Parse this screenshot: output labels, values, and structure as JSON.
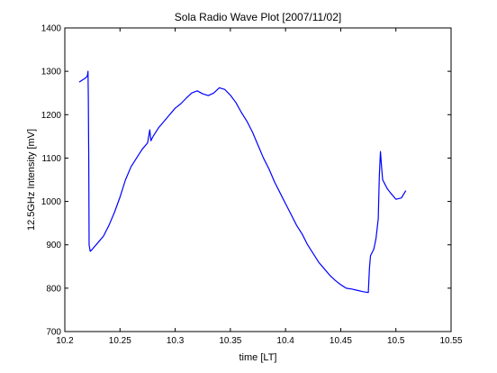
{
  "chart_data": {
    "type": "line",
    "title": "Sola Radio Wave Plot [2007/11/02]",
    "xlabel": "time [LT]",
    "ylabel": "12.5GHz Intensity [mV]",
    "xlim": [
      10.2,
      10.55
    ],
    "ylim": [
      700,
      1400
    ],
    "x_ticks": [
      "10.2",
      "10.25",
      "10.3",
      "10.35",
      "10.4",
      "10.45",
      "10.5",
      "10.55"
    ],
    "y_ticks": [
      "700",
      "800",
      "900",
      "1000",
      "1100",
      "1200",
      "1300",
      "1400"
    ],
    "grid": false,
    "legend": "none",
    "series": [
      {
        "color": "#0000ff",
        "x": [
          10.213,
          10.216,
          10.219,
          10.2205,
          10.221,
          10.2213,
          10.2215,
          10.2217,
          10.222,
          10.223,
          10.225,
          10.23,
          10.235,
          10.24,
          10.245,
          10.25,
          10.255,
          10.26,
          10.265,
          10.27,
          10.275,
          10.277,
          10.278,
          10.28,
          10.285,
          10.29,
          10.295,
          10.3,
          10.305,
          10.31,
          10.315,
          10.32,
          10.325,
          10.33,
          10.335,
          10.34,
          10.345,
          10.35,
          10.355,
          10.36,
          10.365,
          10.37,
          10.375,
          10.38,
          10.385,
          10.39,
          10.395,
          10.4,
          10.405,
          10.41,
          10.415,
          10.42,
          10.425,
          10.43,
          10.435,
          10.44,
          10.445,
          10.45,
          10.455,
          10.46,
          10.465,
          10.47,
          10.475,
          10.476,
          10.477,
          10.478,
          10.48,
          10.482,
          10.484,
          10.485,
          10.486,
          10.487,
          10.488,
          10.49,
          10.492,
          10.495,
          10.5,
          10.505,
          10.509
        ],
        "y": [
          1275,
          1280,
          1285,
          1290,
          1300,
          1240,
          1160,
          1090,
          900,
          885,
          890,
          905,
          920,
          945,
          975,
          1010,
          1050,
          1080,
          1100,
          1120,
          1135,
          1165,
          1140,
          1150,
          1170,
          1185,
          1200,
          1215,
          1225,
          1238,
          1250,
          1255,
          1248,
          1244,
          1250,
          1262,
          1258,
          1245,
          1228,
          1205,
          1185,
          1160,
          1130,
          1100,
          1075,
          1045,
          1020,
          995,
          970,
          945,
          925,
          900,
          880,
          860,
          845,
          830,
          818,
          808,
          800,
          798,
          795,
          792,
          790,
          845,
          875,
          880,
          890,
          915,
          960,
          1060,
          1115,
          1080,
          1050,
          1040,
          1030,
          1020,
          1005,
          1008,
          1025
        ]
      }
    ]
  }
}
